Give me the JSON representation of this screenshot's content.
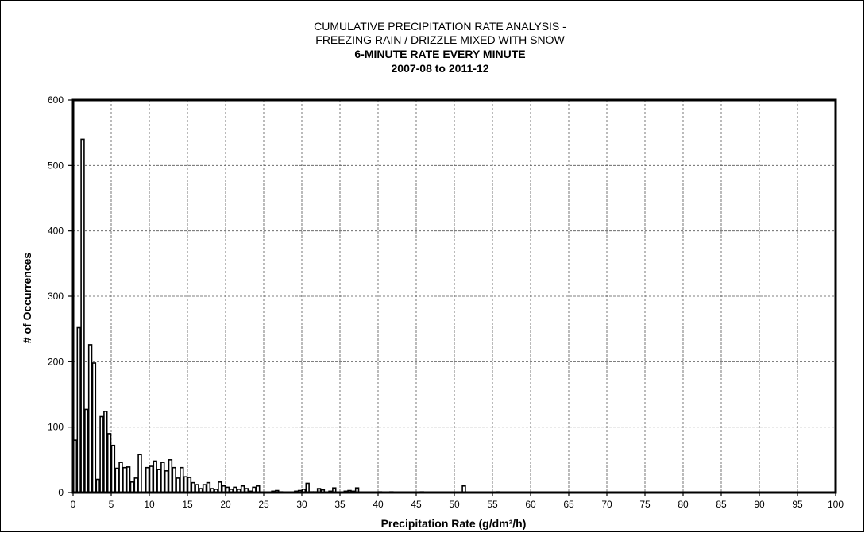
{
  "chart_data": {
    "type": "bar",
    "title_lines": [
      "CUMULATIVE PRECIPITATION RATE ANALYSIS -",
      "FREEZING RAIN / DRIZZLE MIXED WITH SNOW"
    ],
    "subtitle_lines": [
      "6-MINUTE RATE EVERY MINUTE",
      "2007-08 to 2011-12"
    ],
    "xlabel": "Precipitation Rate (g/dm²/h)",
    "ylabel": "# of Occurrences",
    "xlim": [
      0,
      100
    ],
    "ylim": [
      0,
      600
    ],
    "x_ticks": [
      "0",
      "5",
      "10",
      "15",
      "20",
      "25",
      "30",
      "35",
      "40",
      "45",
      "50",
      "55",
      "60",
      "65",
      "70",
      "75",
      "80",
      "85",
      "90",
      "95",
      "100"
    ],
    "y_ticks": [
      "0",
      "100",
      "200",
      "300",
      "400",
      "500",
      "600"
    ],
    "grid": true,
    "bin_width": 0.5,
    "bins": [
      0,
      0.5,
      1,
      1.5,
      2,
      2.5,
      3,
      3.5,
      4,
      4.5,
      5,
      5.5,
      6,
      6.5,
      7,
      7.5,
      8,
      8.5,
      9,
      9.5,
      10,
      10.5,
      11,
      11.5,
      12,
      12.5,
      13,
      13.5,
      14,
      14.5,
      15,
      15.5,
      16,
      16.5,
      17,
      17.5,
      18,
      18.5,
      19,
      19.5,
      20,
      20.5,
      21,
      21.5,
      22,
      22.5,
      23,
      23.5,
      24,
      24.5,
      25,
      25.5,
      26,
      26.5,
      27,
      27.5,
      28,
      28.5,
      29,
      29.5,
      30,
      30.5,
      31,
      31.5,
      32,
      32.5,
      33,
      33.5,
      34,
      34.5,
      35,
      35.5,
      36,
      36.5,
      37,
      37.5,
      38,
      38.5,
      39,
      39.5,
      40,
      40.5,
      41,
      41.5,
      42,
      42.5,
      43,
      43.5,
      44,
      44.5,
      45,
      45.5,
      46,
      46.5,
      47,
      47.5,
      48,
      48.5,
      49,
      49.5,
      50,
      50.5,
      51,
      51.5,
      52,
      52.5,
      53,
      53.5,
      54,
      54.5,
      55,
      55.5,
      56,
      56.5,
      57,
      57.5,
      58,
      58.5,
      59,
      59.5,
      60
    ],
    "values": [
      80,
      252,
      540,
      127,
      226,
      198,
      20,
      116,
      124,
      90,
      72,
      37,
      46,
      38,
      39,
      16,
      22,
      58,
      0,
      38,
      40,
      48,
      35,
      46,
      33,
      50,
      38,
      22,
      38,
      24,
      23,
      15,
      12,
      6,
      12,
      15,
      6,
      5,
      16,
      10,
      8,
      5,
      8,
      5,
      10,
      6,
      2,
      8,
      10,
      0,
      0,
      0,
      2,
      3,
      1,
      0,
      0,
      0,
      2,
      3,
      5,
      14,
      1,
      1,
      6,
      4,
      0,
      2,
      7,
      0,
      0,
      2,
      3,
      2,
      7,
      0,
      0,
      0,
      0,
      0,
      1,
      0,
      0,
      1,
      0,
      0,
      0,
      0,
      0,
      0,
      0,
      1,
      0,
      0,
      0,
      0,
      0,
      0,
      0,
      0,
      0,
      0,
      10,
      0,
      0,
      0,
      0,
      0,
      0,
      0,
      0,
      1,
      0,
      0,
      0,
      0,
      0,
      0,
      0,
      0,
      0
    ]
  }
}
